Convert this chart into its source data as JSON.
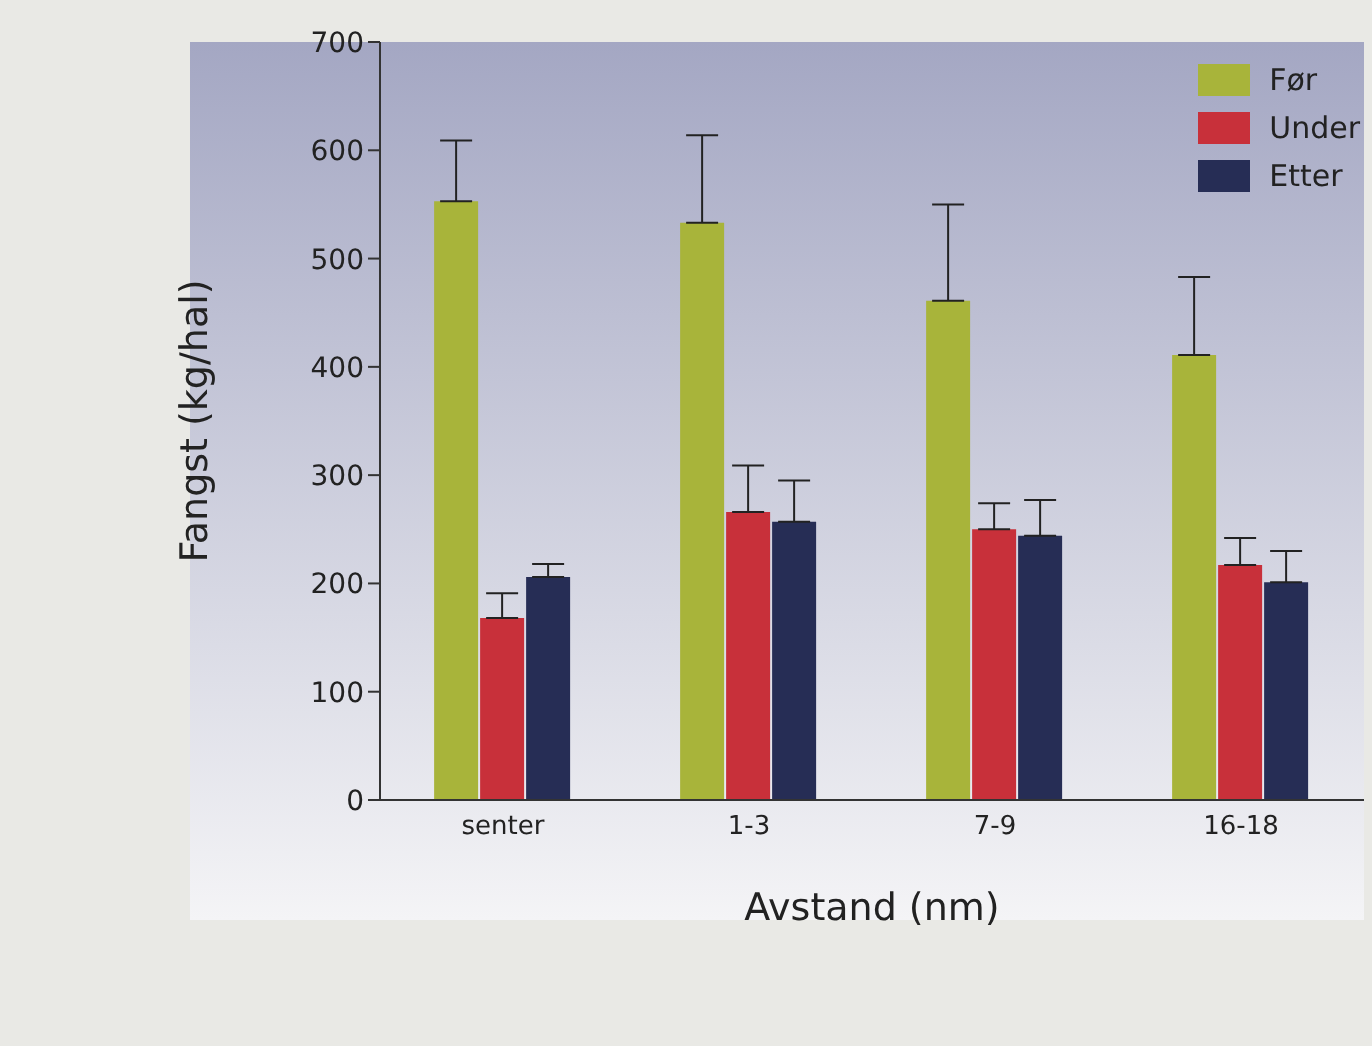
{
  "chart_data": {
    "type": "bar",
    "xlabel": "Avstand (nm)",
    "ylabel": "Fangst (kg/hal)",
    "categories": [
      "senter",
      "1-3",
      "7-9",
      "16-18"
    ],
    "series": [
      {
        "name": "Før",
        "color": "#a8b43a",
        "values": [
          553,
          533,
          461,
          411
        ],
        "errors": [
          [
            553,
            609
          ],
          [
            533,
            614
          ],
          [
            461,
            550
          ],
          [
            411,
            483
          ]
        ]
      },
      {
        "name": "Under",
        "color": "#c8303a",
        "values": [
          168,
          266,
          250,
          217
        ],
        "errors": [
          [
            168,
            191
          ],
          [
            266,
            309
          ],
          [
            250,
            274
          ],
          [
            217,
            242
          ]
        ]
      },
      {
        "name": "Etter",
        "color": "#262d55",
        "values": [
          206,
          257,
          244,
          201
        ],
        "errors": [
          [
            206,
            218
          ],
          [
            257,
            295
          ],
          [
            244,
            277
          ],
          [
            201,
            230
          ]
        ]
      }
    ],
    "ylim": [
      0,
      700
    ],
    "yticks": [
      0,
      100,
      200,
      300,
      400,
      500,
      600,
      700
    ],
    "grid": false,
    "legend": "top right"
  }
}
